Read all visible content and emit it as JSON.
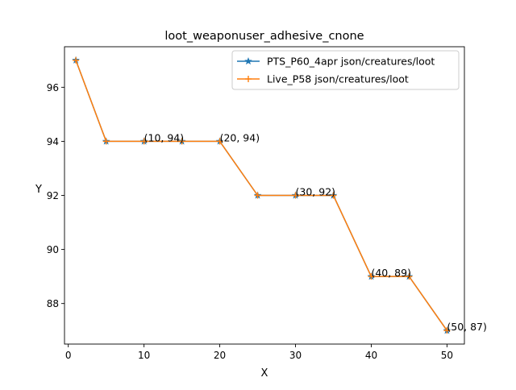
{
  "chart_data": {
    "type": "line",
    "title": "loot_weaponuser_adhesive_cnone",
    "xlabel": "X",
    "ylabel": "Y",
    "xlim": [
      -0.5,
      52.3
    ],
    "ylim": [
      86.5,
      97.5
    ],
    "xticks": [
      0,
      10,
      20,
      30,
      40,
      50
    ],
    "yticks": [
      88,
      90,
      92,
      94,
      96
    ],
    "grid": false,
    "legend_position": "top-right",
    "x": [
      1,
      5,
      10,
      15,
      20,
      25,
      30,
      35,
      40,
      45,
      50
    ],
    "series": [
      {
        "name": "PTS_P60_4apr json/creatures/loot",
        "color": "#1f77b4",
        "marker": "star",
        "values": [
          97,
          94,
          94,
          94,
          94,
          92,
          92,
          92,
          89,
          89,
          87
        ]
      },
      {
        "name": "Live_P58 json/creatures/loot",
        "color": "#ff7f0e",
        "marker": "plus",
        "values": [
          97,
          94,
          94,
          94,
          94,
          92,
          92,
          92,
          89,
          89,
          87
        ]
      }
    ],
    "annotations": [
      {
        "text": "(10, 94)",
        "x": 10,
        "y": 94
      },
      {
        "text": "(20, 94)",
        "x": 20,
        "y": 94
      },
      {
        "text": "(30, 92)",
        "x": 30,
        "y": 92
      },
      {
        "text": "(40, 89)",
        "x": 40,
        "y": 89
      },
      {
        "text": "(50, 87)",
        "x": 50,
        "y": 87
      }
    ]
  }
}
